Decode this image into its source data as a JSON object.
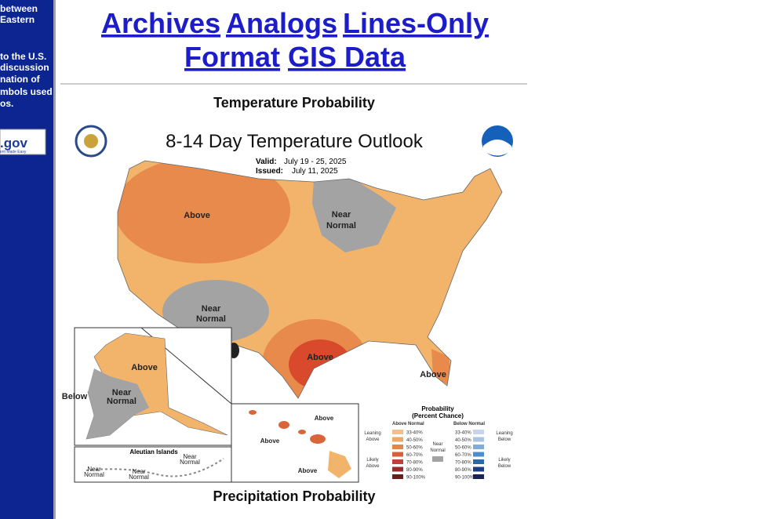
{
  "sidebar": {
    "lines": [
      "between",
      "Eastern",
      "to the U.S.",
      "discussion",
      "nation of",
      "mbols used",
      "os."
    ],
    "badge": ".gov",
    "badge_tagline": "ent Made Easy"
  },
  "links": [
    "Archives",
    "Analogs",
    "Lines-Only",
    "Format",
    "GIS Data"
  ],
  "sections": [
    {
      "heading": "Temperature Probability"
    },
    {
      "heading": "Precipitation Probability"
    }
  ],
  "map": {
    "title": "8-14 Day Temperature Outlook",
    "valid_label": "Valid:",
    "valid": "July 19 - 25, 2025",
    "issued_label": "Issued:",
    "issued": "July 11, 2025",
    "regions": [
      "Above",
      "Near",
      "Normal",
      "Near",
      "Normal",
      "Above",
      "Above"
    ],
    "alaska": [
      "Above",
      "Near",
      "Normal",
      "Below"
    ],
    "aleutian_title": "Aleutian Islands",
    "aleutian": [
      "Near",
      "Normal",
      "Near",
      "Normal",
      "Near",
      "Normal"
    ],
    "hawaii": [
      "Above",
      "Above",
      "Above"
    ],
    "legend": {
      "title": "Probability",
      "subtitle": "(Percent Chance)",
      "above_header": "Above Normal",
      "below_header": "Below Normal",
      "leaning_above": [
        "Leaning",
        "Above"
      ],
      "likely_above": [
        "Likely",
        "Above"
      ],
      "near_normal": [
        "Near",
        "Normal"
      ],
      "leaning_below": [
        "Leaning",
        "Below"
      ],
      "likely_below": [
        "Likely",
        "Below"
      ],
      "above_ranges": [
        "33-40%",
        "40-50%",
        "50-60%",
        "60-70%",
        "70-80%",
        "80-90%",
        "90-100%"
      ],
      "below_ranges": [
        "33-40%",
        "40-50%",
        "50-60%",
        "60-70%",
        "70-80%",
        "80-90%",
        "90-100%"
      ]
    }
  }
}
